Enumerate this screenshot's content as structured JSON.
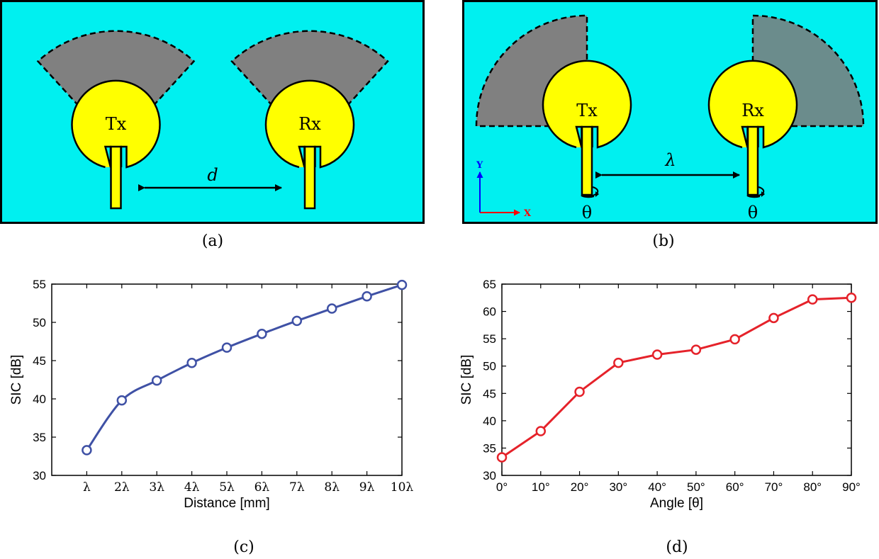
{
  "panel_a": {
    "caption": "(a)",
    "tx_label": "Tx",
    "rx_label": "Rx",
    "distance_label": "d",
    "colors": {
      "background": "#00F0F0",
      "antenna": "#FFFF00",
      "radiation": "#808080",
      "frame": "#000000"
    }
  },
  "panel_b": {
    "caption": "(b)",
    "tx_label": "Tx",
    "rx_label": "Rx",
    "distance_label": "λ",
    "rotation_label_tx": "θ",
    "rotation_label_rx": "θ",
    "axis_x_label": "X",
    "axis_y_label": "Y",
    "colors": {
      "background": "#00F0F0",
      "antenna": "#FFFF00",
      "radiation_tx": "#808080",
      "radiation_rx": "#6B8C8C",
      "axis_x": "#FF0000",
      "axis_y": "#0000FF"
    }
  },
  "panel_c": {
    "caption": "(c)",
    "chart_data": {
      "type": "line",
      "title": "",
      "xlabel": "Distance [mm]",
      "ylabel": "SIC [dB]",
      "categories": [
        "λ",
        "2λ",
        "3λ",
        "4λ",
        "5λ",
        "6λ",
        "7λ",
        "8λ",
        "9λ",
        "10λ"
      ],
      "x": [
        1,
        2,
        3,
        4,
        5,
        6,
        7,
        8,
        9,
        10
      ],
      "series": [
        {
          "values": [
            33.3,
            39.8,
            42.4,
            44.7,
            46.7,
            48.5,
            50.2,
            51.8,
            53.4,
            54.9
          ],
          "color": "#3F51A5",
          "marker": "circle-open",
          "smooth": true
        }
      ],
      "xlim": [
        0,
        10
      ],
      "ylim": [
        30,
        55
      ],
      "yticks": [
        30,
        35,
        40,
        45,
        50,
        55
      ],
      "grid": false,
      "legend": "none"
    }
  },
  "panel_d": {
    "caption": "(d)",
    "chart_data": {
      "type": "line",
      "title": "",
      "xlabel": "Angle [θ]",
      "ylabel": "SIC [dB]",
      "categories": [
        "0°",
        "10°",
        "20°",
        "30°",
        "40°",
        "50°",
        "60°",
        "70°",
        "80°",
        "90°"
      ],
      "x": [
        0,
        10,
        20,
        30,
        40,
        50,
        60,
        70,
        80,
        90
      ],
      "series": [
        {
          "values": [
            33.3,
            38.1,
            45.3,
            50.6,
            52.1,
            53.0,
            54.9,
            58.8,
            62.2,
            62.5
          ],
          "color": "#E5222A",
          "marker": "circle-open",
          "smooth": false
        }
      ],
      "xlim": [
        0,
        90
      ],
      "ylim": [
        30,
        65
      ],
      "yticks": [
        30,
        35,
        40,
        45,
        50,
        55,
        60,
        65
      ],
      "grid": false,
      "legend": "none"
    }
  }
}
